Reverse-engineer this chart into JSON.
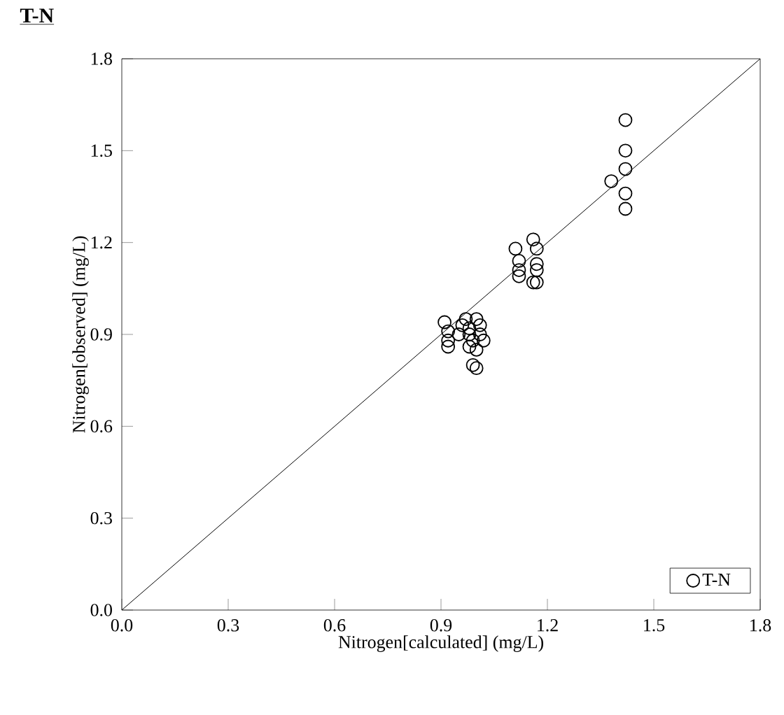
{
  "chart_data": {
    "type": "scatter",
    "title": "T-N",
    "xlabel": "Nitrogen[calculated] (mg/L)",
    "ylabel": "Nitrogen[observed] (mg/L)",
    "xlim": [
      0,
      1.8
    ],
    "ylim": [
      0,
      1.8
    ],
    "xticks": [
      {
        "value": 0,
        "label": "0.0"
      },
      {
        "value": 0.3,
        "label": "0.3"
      },
      {
        "value": 0.6,
        "label": "0.6"
      },
      {
        "value": 0.9,
        "label": "0.9"
      },
      {
        "value": 1.2,
        "label": "1.2"
      },
      {
        "value": 1.5,
        "label": "1.5"
      },
      {
        "value": 1.8,
        "label": "1.8"
      }
    ],
    "yticks": [
      {
        "value": 0,
        "label": "0.0"
      },
      {
        "value": 0.3,
        "label": "0.3"
      },
      {
        "value": 0.6,
        "label": "0.6"
      },
      {
        "value": 0.9,
        "label": "0.9"
      },
      {
        "value": 1.2,
        "label": "1.2"
      },
      {
        "value": 1.5,
        "label": "1.5"
      },
      {
        "value": 1.8,
        "label": "1.8"
      }
    ],
    "legend": "bottom right",
    "series": [
      {
        "name": "T-N",
        "type": "scatter",
        "marker": "circle",
        "color": "#000000",
        "x": [
          0.91,
          0.92,
          0.92,
          0.92,
          0.95,
          0.96,
          0.97,
          0.98,
          0.98,
          0.99,
          0.99,
          1.0,
          1.0,
          1.01,
          1.01,
          1.02,
          0.98,
          1.0,
          1.11,
          1.12,
          1.12,
          1.12,
          1.16,
          1.17,
          1.17,
          1.17,
          1.17,
          1.16,
          1.38,
          1.42,
          1.42,
          1.42,
          1.42,
          1.42
        ],
        "values": [
          0.94,
          0.91,
          0.88,
          0.86,
          0.9,
          0.93,
          0.95,
          0.92,
          0.9,
          0.88,
          0.8,
          0.79,
          0.95,
          0.93,
          0.9,
          0.88,
          0.86,
          0.85,
          1.18,
          1.14,
          1.11,
          1.09,
          1.21,
          1.18,
          1.13,
          1.11,
          1.07,
          1.07,
          1.4,
          1.6,
          1.5,
          1.44,
          1.36,
          1.31
        ]
      },
      {
        "type": "line",
        "color": "#000000",
        "x": [
          0,
          1.8
        ],
        "values": [
          0,
          1.8
        ]
      }
    ]
  }
}
